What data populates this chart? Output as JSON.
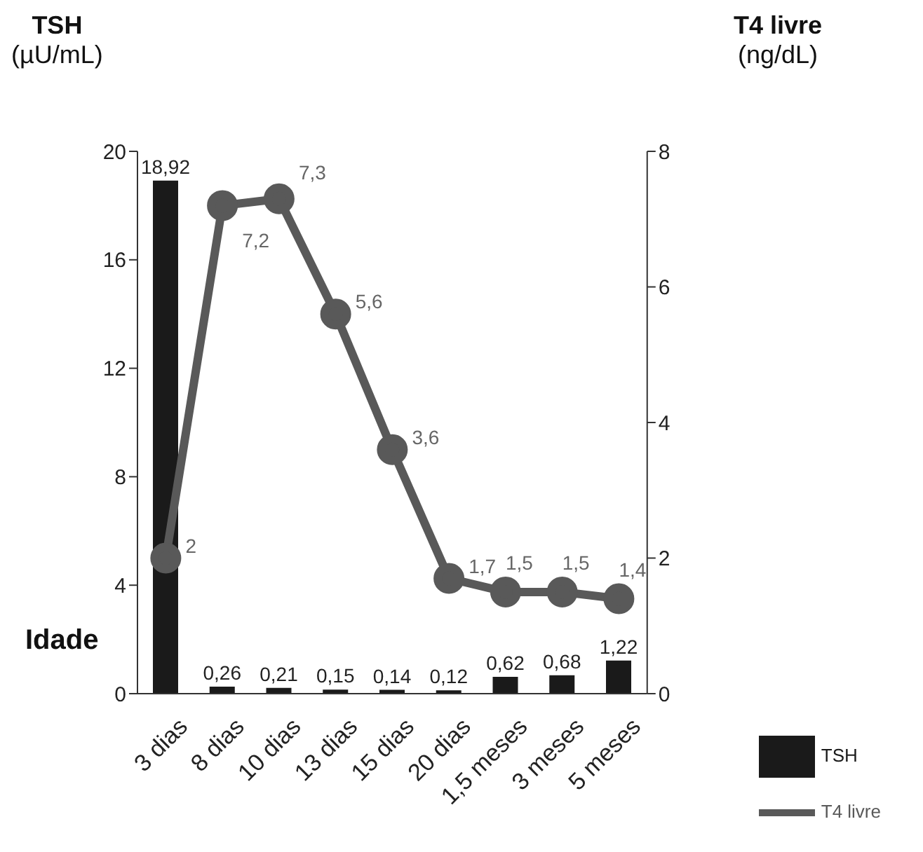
{
  "chart_data": {
    "type": "bar",
    "xlabel": "Idade",
    "ylabel": "TSH\n(µU/mL)",
    "y2label": "T4 livre\n(ng/dL)",
    "categories": [
      "3 dias",
      "8 dias",
      "10 dias",
      "13 dias",
      "15 dias",
      "20 dias",
      "1,5 meses",
      "3 meses",
      "5 meses"
    ],
    "series": [
      {
        "name": "TSH",
        "color": "#1a1a1a",
        "values": [
          18.92,
          0.26,
          0.21,
          0.15,
          0.14,
          0.12,
          0.62,
          0.68,
          1.22
        ],
        "value_labels": [
          "18,92",
          "0,26",
          "0,21",
          "0,15",
          "0,14",
          "0,12",
          "0,62",
          "0,68",
          "1,22"
        ]
      },
      {
        "name": "T4 livre",
        "type": "line",
        "axis": "y2",
        "color": "#595959",
        "marker": "circle",
        "values": [
          2,
          7.2,
          7.3,
          5.6,
          3.6,
          1.7,
          1.5,
          1.5,
          1.4
        ],
        "value_labels": [
          "2",
          "7,2",
          "7,3",
          "5,6",
          "3,6",
          "1,7",
          "1,5",
          "1,5",
          "1,4"
        ]
      }
    ],
    "ylim": [
      0,
      20
    ],
    "yticks": [
      0,
      4,
      8,
      12,
      16,
      20
    ],
    "y2lim": [
      0,
      8
    ],
    "y2ticks": [
      0,
      2,
      4,
      6,
      8
    ],
    "grid": false,
    "legend": "bottom right"
  }
}
